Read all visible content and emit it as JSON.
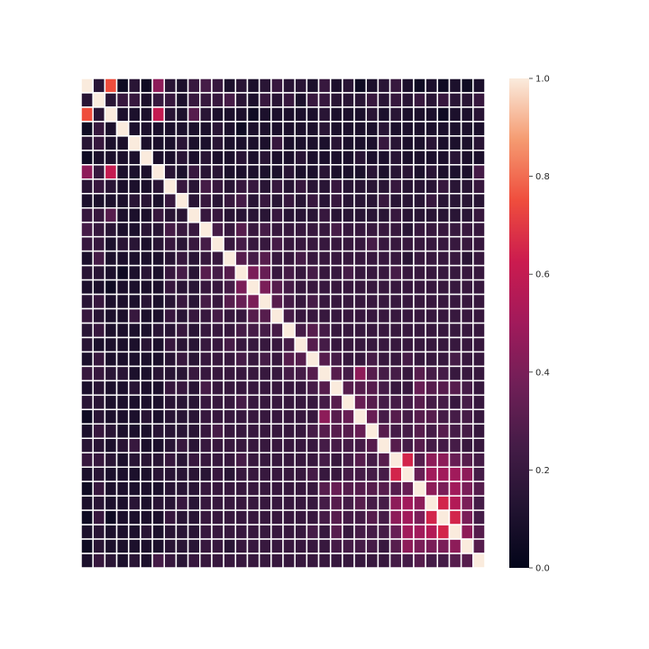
{
  "chart_data": {
    "type": "heatmap",
    "title": "",
    "xlabel": "",
    "ylabel": "",
    "n_rows": 34,
    "n_cols": 34,
    "value_range": [
      0,
      1
    ],
    "grid": true,
    "cell_border_color": "#ffffff",
    "tick_labels_shown": false,
    "colormap": "rocket",
    "colorbar": {
      "placement": "right",
      "ticks": [
        "0.0",
        "0.2",
        "0.4",
        "0.6",
        "0.8",
        "1.0"
      ]
    },
    "values": [
      [
        1.0,
        0.15,
        0.75,
        0.05,
        0.15,
        0.05,
        0.45,
        0.15,
        0.1,
        0.2,
        0.25,
        0.2,
        0.1,
        0.15,
        0.1,
        0.15,
        0.2,
        0.15,
        0.15,
        0.1,
        0.2,
        0.1,
        0.15,
        0.05,
        0.1,
        0.15,
        0.2,
        0.1,
        0.05,
        0.1,
        0.05,
        0.1,
        0.05,
        0.1
      ],
      [
        0.15,
        1.0,
        0.15,
        0.2,
        0.2,
        0.1,
        0.2,
        0.2,
        0.1,
        0.2,
        0.2,
        0.2,
        0.25,
        0.15,
        0.1,
        0.2,
        0.15,
        0.2,
        0.1,
        0.2,
        0.2,
        0.15,
        0.15,
        0.15,
        0.2,
        0.15,
        0.2,
        0.15,
        0.2,
        0.15,
        0.2,
        0.15,
        0.15,
        0.2
      ],
      [
        0.75,
        0.15,
        1.0,
        0.1,
        0.1,
        0.1,
        0.6,
        0.15,
        0.1,
        0.3,
        0.15,
        0.1,
        0.1,
        0.1,
        0.05,
        0.1,
        0.1,
        0.1,
        0.1,
        0.1,
        0.15,
        0.1,
        0.1,
        0.1,
        0.15,
        0.1,
        0.15,
        0.1,
        0.1,
        0.1,
        0.05,
        0.1,
        0.1,
        0.15
      ],
      [
        0.05,
        0.2,
        0.1,
        1.0,
        0.1,
        0.1,
        0.1,
        0.1,
        0.1,
        0.1,
        0.1,
        0.15,
        0.1,
        0.05,
        0.1,
        0.1,
        0.1,
        0.1,
        0.1,
        0.1,
        0.15,
        0.1,
        0.1,
        0.1,
        0.1,
        0.15,
        0.1,
        0.1,
        0.1,
        0.1,
        0.1,
        0.1,
        0.1,
        0.1
      ],
      [
        0.15,
        0.2,
        0.1,
        0.1,
        1.0,
        0.1,
        0.1,
        0.1,
        0.15,
        0.1,
        0.1,
        0.15,
        0.1,
        0.1,
        0.1,
        0.1,
        0.2,
        0.1,
        0.1,
        0.1,
        0.1,
        0.15,
        0.1,
        0.1,
        0.1,
        0.2,
        0.15,
        0.1,
        0.1,
        0.15,
        0.1,
        0.1,
        0.1,
        0.15
      ],
      [
        0.05,
        0.1,
        0.1,
        0.1,
        0.1,
        1.0,
        0.1,
        0.1,
        0.15,
        0.1,
        0.15,
        0.1,
        0.1,
        0.15,
        0.1,
        0.15,
        0.1,
        0.1,
        0.15,
        0.1,
        0.1,
        0.1,
        0.1,
        0.15,
        0.1,
        0.1,
        0.15,
        0.1,
        0.1,
        0.1,
        0.1,
        0.15,
        0.1,
        0.1
      ],
      [
        0.45,
        0.2,
        0.6,
        0.1,
        0.1,
        0.1,
        1.0,
        0.15,
        0.1,
        0.2,
        0.15,
        0.15,
        0.1,
        0.1,
        0.1,
        0.1,
        0.1,
        0.15,
        0.1,
        0.1,
        0.15,
        0.1,
        0.1,
        0.1,
        0.15,
        0.1,
        0.15,
        0.15,
        0.1,
        0.15,
        0.1,
        0.1,
        0.1,
        0.25
      ],
      [
        0.15,
        0.2,
        0.15,
        0.1,
        0.1,
        0.1,
        0.15,
        1.0,
        0.2,
        0.15,
        0.25,
        0.2,
        0.15,
        0.2,
        0.2,
        0.15,
        0.2,
        0.15,
        0.2,
        0.15,
        0.15,
        0.2,
        0.15,
        0.15,
        0.15,
        0.15,
        0.2,
        0.15,
        0.15,
        0.15,
        0.2,
        0.15,
        0.15,
        0.2
      ],
      [
        0.1,
        0.1,
        0.1,
        0.1,
        0.15,
        0.15,
        0.1,
        0.2,
        1.0,
        0.15,
        0.2,
        0.15,
        0.2,
        0.25,
        0.15,
        0.2,
        0.15,
        0.2,
        0.15,
        0.2,
        0.15,
        0.2,
        0.15,
        0.15,
        0.15,
        0.2,
        0.15,
        0.15,
        0.15,
        0.2,
        0.15,
        0.15,
        0.15,
        0.15
      ],
      [
        0.2,
        0.2,
        0.3,
        0.1,
        0.1,
        0.1,
        0.2,
        0.15,
        0.15,
        1.0,
        0.2,
        0.2,
        0.15,
        0.15,
        0.15,
        0.15,
        0.2,
        0.15,
        0.15,
        0.15,
        0.2,
        0.15,
        0.15,
        0.15,
        0.15,
        0.15,
        0.2,
        0.15,
        0.15,
        0.15,
        0.15,
        0.15,
        0.15,
        0.2
      ],
      [
        0.25,
        0.2,
        0.15,
        0.1,
        0.1,
        0.15,
        0.15,
        0.25,
        0.2,
        0.2,
        1.0,
        0.25,
        0.2,
        0.3,
        0.2,
        0.25,
        0.2,
        0.2,
        0.2,
        0.2,
        0.2,
        0.25,
        0.2,
        0.2,
        0.2,
        0.2,
        0.2,
        0.15,
        0.2,
        0.2,
        0.2,
        0.2,
        0.2,
        0.2
      ],
      [
        0.2,
        0.2,
        0.1,
        0.15,
        0.15,
        0.1,
        0.15,
        0.2,
        0.15,
        0.2,
        0.25,
        1.0,
        0.2,
        0.25,
        0.2,
        0.2,
        0.25,
        0.2,
        0.2,
        0.2,
        0.2,
        0.2,
        0.2,
        0.2,
        0.25,
        0.2,
        0.2,
        0.2,
        0.2,
        0.2,
        0.2,
        0.2,
        0.2,
        0.2
      ],
      [
        0.1,
        0.25,
        0.1,
        0.1,
        0.1,
        0.1,
        0.1,
        0.15,
        0.2,
        0.15,
        0.2,
        0.2,
        1.0,
        0.3,
        0.25,
        0.3,
        0.2,
        0.2,
        0.25,
        0.2,
        0.2,
        0.2,
        0.2,
        0.2,
        0.2,
        0.2,
        0.2,
        0.15,
        0.2,
        0.2,
        0.2,
        0.2,
        0.15,
        0.2
      ],
      [
        0.15,
        0.15,
        0.1,
        0.05,
        0.1,
        0.15,
        0.1,
        0.2,
        0.25,
        0.15,
        0.3,
        0.25,
        0.3,
        1.0,
        0.4,
        0.35,
        0.2,
        0.25,
        0.2,
        0.25,
        0.2,
        0.2,
        0.25,
        0.2,
        0.2,
        0.2,
        0.25,
        0.2,
        0.2,
        0.2,
        0.2,
        0.2,
        0.2,
        0.2
      ],
      [
        0.1,
        0.1,
        0.05,
        0.1,
        0.1,
        0.1,
        0.1,
        0.2,
        0.15,
        0.15,
        0.2,
        0.2,
        0.25,
        0.4,
        1.0,
        0.4,
        0.3,
        0.25,
        0.2,
        0.2,
        0.2,
        0.2,
        0.2,
        0.2,
        0.2,
        0.2,
        0.2,
        0.2,
        0.2,
        0.2,
        0.2,
        0.2,
        0.2,
        0.2
      ],
      [
        0.15,
        0.2,
        0.1,
        0.1,
        0.1,
        0.15,
        0.1,
        0.15,
        0.2,
        0.15,
        0.25,
        0.2,
        0.3,
        0.35,
        0.4,
        1.0,
        0.3,
        0.25,
        0.2,
        0.25,
        0.2,
        0.2,
        0.2,
        0.2,
        0.2,
        0.2,
        0.2,
        0.2,
        0.2,
        0.2,
        0.2,
        0.2,
        0.2,
        0.2
      ],
      [
        0.2,
        0.15,
        0.1,
        0.1,
        0.2,
        0.1,
        0.1,
        0.2,
        0.15,
        0.2,
        0.2,
        0.25,
        0.2,
        0.2,
        0.3,
        0.3,
        1.0,
        0.25,
        0.2,
        0.2,
        0.2,
        0.2,
        0.2,
        0.2,
        0.2,
        0.2,
        0.2,
        0.2,
        0.2,
        0.2,
        0.2,
        0.2,
        0.2,
        0.2
      ],
      [
        0.15,
        0.2,
        0.1,
        0.1,
        0.1,
        0.1,
        0.15,
        0.15,
        0.2,
        0.15,
        0.2,
        0.2,
        0.2,
        0.25,
        0.25,
        0.25,
        0.25,
        1.0,
        0.25,
        0.3,
        0.25,
        0.2,
        0.2,
        0.2,
        0.2,
        0.2,
        0.2,
        0.2,
        0.2,
        0.2,
        0.2,
        0.2,
        0.2,
        0.2
      ],
      [
        0.15,
        0.1,
        0.1,
        0.1,
        0.1,
        0.15,
        0.1,
        0.2,
        0.15,
        0.15,
        0.2,
        0.2,
        0.25,
        0.2,
        0.2,
        0.2,
        0.2,
        0.25,
        1.0,
        0.3,
        0.25,
        0.2,
        0.2,
        0.2,
        0.2,
        0.2,
        0.2,
        0.2,
        0.2,
        0.2,
        0.2,
        0.2,
        0.2,
        0.2
      ],
      [
        0.1,
        0.2,
        0.1,
        0.1,
        0.1,
        0.1,
        0.1,
        0.15,
        0.2,
        0.15,
        0.2,
        0.2,
        0.2,
        0.25,
        0.2,
        0.25,
        0.2,
        0.3,
        0.3,
        1.0,
        0.3,
        0.25,
        0.2,
        0.2,
        0.25,
        0.2,
        0.2,
        0.25,
        0.2,
        0.2,
        0.2,
        0.25,
        0.2,
        0.2
      ],
      [
        0.2,
        0.2,
        0.15,
        0.15,
        0.1,
        0.1,
        0.15,
        0.15,
        0.15,
        0.2,
        0.2,
        0.2,
        0.2,
        0.2,
        0.2,
        0.2,
        0.2,
        0.25,
        0.25,
        0.3,
        1.0,
        0.3,
        0.25,
        0.45,
        0.3,
        0.25,
        0.25,
        0.2,
        0.3,
        0.25,
        0.25,
        0.2,
        0.2,
        0.2
      ],
      [
        0.1,
        0.15,
        0.1,
        0.1,
        0.15,
        0.1,
        0.1,
        0.2,
        0.2,
        0.15,
        0.25,
        0.2,
        0.2,
        0.2,
        0.2,
        0.2,
        0.2,
        0.2,
        0.2,
        0.25,
        0.3,
        1.0,
        0.3,
        0.3,
        0.3,
        0.25,
        0.2,
        0.2,
        0.35,
        0.3,
        0.3,
        0.3,
        0.25,
        0.2
      ],
      [
        0.15,
        0.15,
        0.1,
        0.1,
        0.1,
        0.1,
        0.1,
        0.15,
        0.15,
        0.15,
        0.2,
        0.2,
        0.2,
        0.25,
        0.2,
        0.2,
        0.2,
        0.2,
        0.2,
        0.2,
        0.25,
        0.3,
        1.0,
        0.35,
        0.3,
        0.25,
        0.25,
        0.25,
        0.3,
        0.25,
        0.25,
        0.2,
        0.25,
        0.2
      ],
      [
        0.05,
        0.15,
        0.1,
        0.1,
        0.1,
        0.15,
        0.1,
        0.15,
        0.15,
        0.15,
        0.2,
        0.2,
        0.2,
        0.2,
        0.2,
        0.2,
        0.2,
        0.2,
        0.2,
        0.2,
        0.45,
        0.3,
        0.35,
        1.0,
        0.35,
        0.25,
        0.3,
        0.25,
        0.3,
        0.3,
        0.25,
        0.25,
        0.25,
        0.2
      ],
      [
        0.1,
        0.2,
        0.15,
        0.1,
        0.1,
        0.1,
        0.15,
        0.15,
        0.15,
        0.15,
        0.2,
        0.25,
        0.2,
        0.2,
        0.2,
        0.2,
        0.2,
        0.2,
        0.2,
        0.25,
        0.3,
        0.3,
        0.3,
        0.35,
        1.0,
        0.3,
        0.25,
        0.25,
        0.3,
        0.25,
        0.3,
        0.25,
        0.25,
        0.2
      ],
      [
        0.15,
        0.15,
        0.1,
        0.15,
        0.2,
        0.1,
        0.1,
        0.15,
        0.2,
        0.15,
        0.2,
        0.2,
        0.2,
        0.2,
        0.2,
        0.2,
        0.2,
        0.2,
        0.2,
        0.2,
        0.25,
        0.25,
        0.25,
        0.25,
        0.3,
        1.0,
        0.3,
        0.25,
        0.3,
        0.25,
        0.25,
        0.25,
        0.2,
        0.2
      ],
      [
        0.2,
        0.2,
        0.15,
        0.1,
        0.15,
        0.15,
        0.15,
        0.2,
        0.15,
        0.2,
        0.2,
        0.2,
        0.2,
        0.25,
        0.2,
        0.2,
        0.2,
        0.2,
        0.2,
        0.2,
        0.25,
        0.2,
        0.25,
        0.3,
        0.25,
        0.3,
        1.0,
        0.65,
        0.3,
        0.45,
        0.45,
        0.35,
        0.3,
        0.25
      ],
      [
        0.1,
        0.15,
        0.1,
        0.1,
        0.1,
        0.1,
        0.15,
        0.15,
        0.15,
        0.15,
        0.15,
        0.2,
        0.15,
        0.2,
        0.2,
        0.2,
        0.2,
        0.2,
        0.2,
        0.25,
        0.2,
        0.2,
        0.25,
        0.25,
        0.25,
        0.25,
        0.65,
        1.0,
        0.35,
        0.5,
        0.5,
        0.5,
        0.45,
        0.25
      ],
      [
        0.05,
        0.2,
        0.1,
        0.1,
        0.1,
        0.1,
        0.1,
        0.15,
        0.15,
        0.15,
        0.2,
        0.2,
        0.2,
        0.2,
        0.2,
        0.2,
        0.2,
        0.2,
        0.2,
        0.2,
        0.3,
        0.35,
        0.3,
        0.3,
        0.3,
        0.3,
        0.3,
        0.35,
        1.0,
        0.45,
        0.4,
        0.5,
        0.4,
        0.3
      ],
      [
        0.1,
        0.15,
        0.1,
        0.1,
        0.15,
        0.1,
        0.15,
        0.15,
        0.2,
        0.15,
        0.2,
        0.2,
        0.2,
        0.2,
        0.2,
        0.2,
        0.2,
        0.2,
        0.2,
        0.2,
        0.25,
        0.3,
        0.25,
        0.3,
        0.25,
        0.25,
        0.45,
        0.5,
        0.45,
        1.0,
        0.65,
        0.55,
        0.4,
        0.25
      ],
      [
        0.05,
        0.2,
        0.05,
        0.1,
        0.1,
        0.1,
        0.1,
        0.2,
        0.15,
        0.15,
        0.2,
        0.2,
        0.2,
        0.2,
        0.2,
        0.2,
        0.2,
        0.2,
        0.2,
        0.2,
        0.25,
        0.3,
        0.25,
        0.25,
        0.3,
        0.25,
        0.45,
        0.5,
        0.4,
        0.65,
        1.0,
        0.65,
        0.4,
        0.25
      ],
      [
        0.1,
        0.15,
        0.1,
        0.1,
        0.1,
        0.15,
        0.1,
        0.15,
        0.15,
        0.15,
        0.2,
        0.2,
        0.2,
        0.2,
        0.2,
        0.2,
        0.2,
        0.2,
        0.2,
        0.25,
        0.2,
        0.3,
        0.2,
        0.25,
        0.25,
        0.25,
        0.35,
        0.5,
        0.5,
        0.55,
        0.65,
        1.0,
        0.45,
        0.3
      ],
      [
        0.05,
        0.15,
        0.1,
        0.1,
        0.1,
        0.1,
        0.1,
        0.15,
        0.15,
        0.15,
        0.2,
        0.2,
        0.15,
        0.2,
        0.2,
        0.2,
        0.2,
        0.2,
        0.2,
        0.2,
        0.2,
        0.25,
        0.25,
        0.25,
        0.25,
        0.2,
        0.3,
        0.45,
        0.4,
        0.4,
        0.4,
        0.45,
        1.0,
        0.3
      ],
      [
        0.1,
        0.2,
        0.15,
        0.1,
        0.15,
        0.1,
        0.25,
        0.2,
        0.15,
        0.2,
        0.2,
        0.2,
        0.2,
        0.2,
        0.2,
        0.2,
        0.2,
        0.2,
        0.2,
        0.2,
        0.2,
        0.2,
        0.2,
        0.2,
        0.2,
        0.2,
        0.25,
        0.25,
        0.3,
        0.25,
        0.25,
        0.3,
        0.3,
        1.0
      ]
    ]
  }
}
